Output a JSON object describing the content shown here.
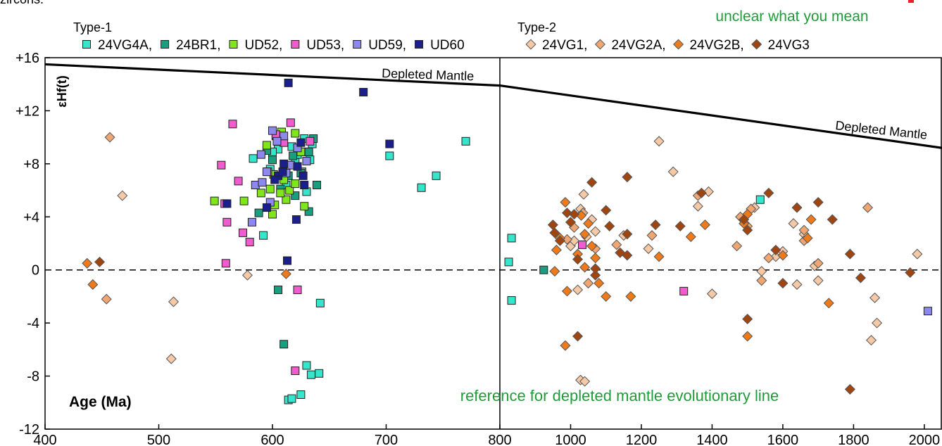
{
  "header_fragment": "zircons.",
  "comment_fragment": "unclear what you mean",
  "comment_bottom": "reference for depleted mantle evolutionary line",
  "colors": {
    "24VG4A": "#33e6cc",
    "24BR1": "#1a9e80",
    "UD52": "#7fe61a",
    "UD53": "#f05ccf",
    "UD59": "#8c88ee",
    "UD60": "#1a1f8c",
    "24VG1": "#f5c9a6",
    "24VG2A": "#f0a673",
    "24VG2B": "#ee7a1a",
    "24VG3": "#a0450f",
    "comment_green": "#1f9b3a",
    "comment_red": "#e8202a"
  },
  "chart_data": {
    "type": "scatter",
    "xlabel": "Age (Ma)",
    "ylabel": "εHf(t)",
    "xlim": [
      400,
      2050
    ],
    "ylim": [
      -12,
      16
    ],
    "x_break": 800,
    "x_ticks": [
      {
        "v": 400,
        "t": "400"
      },
      {
        "v": 500,
        "t": "500"
      },
      {
        "v": 600,
        "t": "600"
      },
      {
        "v": 700,
        "t": "700"
      },
      {
        "v": 800,
        "t": "800"
      },
      {
        "v": 1000,
        "t": "1000"
      },
      {
        "v": 1200,
        "t": "1200"
      },
      {
        "v": 1400,
        "t": "1400"
      },
      {
        "v": 1600,
        "t": "1600"
      },
      {
        "v": 1800,
        "t": "1800"
      },
      {
        "v": 2000,
        "t": "2000"
      }
    ],
    "y_ticks": [
      {
        "v": -12,
        "t": "-12"
      },
      {
        "v": -8,
        "t": "-8"
      },
      {
        "v": -4,
        "t": "-4"
      },
      {
        "v": 0,
        "t": "0"
      },
      {
        "v": 4,
        "t": "+4"
      },
      {
        "v": 8,
        "t": "+8"
      },
      {
        "v": 12,
        "t": "+12"
      },
      {
        "v": 16,
        "t": "+16"
      }
    ],
    "legend_groups": [
      {
        "title": "Type-1",
        "entries": [
          {
            "name": "24VG4A",
            "text": "24VG4A,"
          },
          {
            "name": "24BR1",
            "text": "24BR1,"
          },
          {
            "name": "UD52",
            "text": "UD52,"
          },
          {
            "name": "UD53",
            "text": "UD53,"
          },
          {
            "name": "UD59",
            "text": "UD59,"
          },
          {
            "name": "UD60",
            "text": "UD60"
          }
        ]
      },
      {
        "title": "Type-2",
        "entries": [
          {
            "name": "24VG1",
            "text": "24VG1,"
          },
          {
            "name": "24VG2A",
            "text": "24VG2A,"
          },
          {
            "name": "24VG2B",
            "text": "24VG2B,"
          },
          {
            "name": "24VG3",
            "text": "24VG3"
          }
        ]
      }
    ],
    "reference_lines": [
      {
        "label": "Depleted Mantle",
        "points": [
          [
            400,
            15.5
          ],
          [
            800,
            13.9
          ]
        ]
      },
      {
        "label": "Depleted Mantle",
        "points": [
          [
            800,
            13.9
          ],
          [
            2050,
            9.2
          ]
        ]
      }
    ],
    "zero_line": 0,
    "series": [
      {
        "name": "24VG4A",
        "marker": "square",
        "points": [
          [
            770,
            9.7
          ],
          [
            703,
            8.6
          ],
          [
            744,
            7.1
          ],
          [
            731,
            6.2
          ],
          [
            592,
            2.6
          ],
          [
            642,
            -2.5
          ],
          [
            630,
            -7.2
          ],
          [
            634,
            -7.9
          ],
          [
            641,
            -7.8
          ],
          [
            625,
            -9.4
          ],
          [
            614,
            -9.8
          ],
          [
            617,
            -9.7
          ],
          [
            583,
            8.4
          ],
          [
            628,
            9.9
          ],
          [
            605,
            9.1
          ],
          [
            635,
            9.5
          ],
          [
            620,
            8.1
          ],
          [
            598,
            7.6
          ],
          [
            612,
            6.4
          ],
          [
            630,
            5.9
          ],
          [
            825,
            0.6
          ],
          [
            833,
            2.4
          ],
          [
            833,
            -2.3
          ],
          [
            1536,
            5.3
          ],
          [
            600,
            8.9
          ],
          [
            626,
            7.4
          ],
          [
            608,
            10.0
          ],
          [
            617,
            9.3
          ],
          [
            622,
            8.7
          ],
          [
            629,
            8.9
          ],
          [
            633,
            8.3
          ]
        ]
      },
      {
        "name": "24BR1",
        "marker": "square",
        "points": [
          [
            603,
            10.1
          ],
          [
            636,
            9.9
          ],
          [
            632,
            8.9
          ],
          [
            639,
            6.4
          ],
          [
            632,
            4.4
          ],
          [
            612,
            7.8
          ],
          [
            595,
            9.0
          ],
          [
            588,
            4.3
          ],
          [
            605,
            -1.5
          ],
          [
            610,
            -5.6
          ],
          [
            600,
            8.3
          ],
          [
            614,
            7.1
          ],
          [
            620,
            5.6
          ],
          [
            607,
            6.1
          ],
          [
            924,
            0.0
          ],
          [
            618,
            8.6
          ],
          [
            625,
            7.3
          ]
        ]
      },
      {
        "name": "UD52",
        "marker": "square",
        "points": [
          [
            549,
            5.2
          ],
          [
            575,
            5.2
          ],
          [
            608,
            10.4
          ],
          [
            620,
            10.3
          ],
          [
            595,
            9.4
          ],
          [
            601,
            7.2
          ],
          [
            610,
            6.8
          ],
          [
            615,
            6.0
          ],
          [
            602,
            4.9
          ],
          [
            628,
            4.8
          ],
          [
            620,
            6.5
          ],
          [
            600,
            4.2
          ],
          [
            590,
            5.8
          ],
          [
            612,
            5.3
          ],
          [
            607,
            5.8
          ],
          [
            625,
            8.9
          ],
          [
            598,
            6.1
          ]
        ]
      },
      {
        "name": "UD53",
        "marker": "square",
        "points": [
          [
            565,
            11.0
          ],
          [
            616,
            11.1
          ],
          [
            555,
            7.9
          ],
          [
            570,
            6.7
          ],
          [
            558,
            5.0
          ],
          [
            560,
            3.6
          ],
          [
            574,
            2.8
          ],
          [
            580,
            2.1
          ],
          [
            559,
            0.5
          ],
          [
            633,
            9.7
          ],
          [
            603,
            10.2
          ],
          [
            622,
            -1.5
          ],
          [
            620,
            -7.6
          ],
          [
            1033,
            1.9
          ],
          [
            1320,
            -1.6
          ],
          [
            610,
            9.6
          ],
          [
            596,
            7.4
          ]
        ]
      },
      {
        "name": "UD59",
        "marker": "square",
        "points": [
          [
            600,
            10.5
          ],
          [
            610,
            10.1
          ],
          [
            590,
            8.7
          ],
          [
            595,
            7.4
          ],
          [
            585,
            6.4
          ],
          [
            582,
            3.6
          ],
          [
            598,
            5.1
          ],
          [
            630,
            8.2
          ],
          [
            616,
            7.9
          ],
          [
            622,
            9.2
          ],
          [
            604,
            9.7
          ],
          [
            591,
            6.6
          ],
          [
            612,
            7.3
          ],
          [
            2010,
            -3.1
          ]
        ]
      },
      {
        "name": "UD60",
        "marker": "square",
        "points": [
          [
            614,
            14.1
          ],
          [
            680,
            13.4
          ],
          [
            703,
            9.5
          ],
          [
            625,
            9.6
          ],
          [
            610,
            8.0
          ],
          [
            605,
            7.1
          ],
          [
            622,
            7.8
          ],
          [
            628,
            6.4
          ],
          [
            602,
            6.8
          ],
          [
            560,
            5.0
          ],
          [
            595,
            4.7
          ],
          [
            621,
            3.8
          ],
          [
            613,
            0.7
          ],
          [
            609,
            7.4
          ],
          [
            627,
            7.1
          ]
        ]
      },
      {
        "name": "24VG1",
        "marker": "diamond",
        "points": [
          [
            468,
            5.6
          ],
          [
            513,
            -2.4
          ],
          [
            511,
            -6.7
          ],
          [
            578,
            -0.4
          ],
          [
            1028,
            -8.3
          ],
          [
            1040,
            -8.4
          ],
          [
            1037,
            5.7
          ],
          [
            1028,
            4.6
          ],
          [
            1060,
            3.8
          ],
          [
            1045,
            2.5
          ],
          [
            1070,
            2.9
          ],
          [
            1000,
            1.8
          ],
          [
            1010,
            2.2
          ],
          [
            1020,
            -1.5
          ],
          [
            1250,
            9.7
          ],
          [
            1290,
            7.4
          ],
          [
            1390,
            5.9
          ],
          [
            1360,
            4.8
          ],
          [
            1520,
            4.7
          ],
          [
            1580,
            1.0
          ],
          [
            1600,
            1.4
          ],
          [
            1630,
            3.5
          ],
          [
            1690,
            0.3
          ],
          [
            1700,
            -0.8
          ],
          [
            1540,
            -0.1
          ],
          [
            1640,
            -1.1
          ],
          [
            1400,
            -1.8
          ],
          [
            1860,
            -2.1
          ],
          [
            1866,
            -4.0
          ],
          [
            1850,
            -5.3
          ],
          [
            1980,
            1.2
          ],
          [
            1660,
            2.7
          ],
          [
            1150,
            2.6
          ],
          [
            1220,
            1.6
          ]
        ]
      },
      {
        "name": "24VG2A",
        "marker": "diamond",
        "points": [
          [
            457,
            10.0
          ],
          [
            454,
            -2.2
          ],
          [
            1035,
            4.3
          ],
          [
            1070,
            1.6
          ],
          [
            1130,
            1.9
          ],
          [
            1230,
            2.6
          ],
          [
            1470,
            1.8
          ],
          [
            1360,
            5.6
          ],
          [
            1480,
            4.0
          ],
          [
            1500,
            3.3
          ],
          [
            1510,
            4.6
          ],
          [
            1560,
            0.9
          ],
          [
            1660,
            3.0
          ],
          [
            1540,
            -0.8
          ],
          [
            1700,
            0.5
          ],
          [
            1840,
            4.7
          ],
          [
            990,
            2.3
          ],
          [
            1010,
            3.2
          ],
          [
            1050,
            -1.0
          ],
          [
            1660,
            2.2
          ]
        ]
      },
      {
        "name": "24VG2B",
        "marker": "diamond",
        "points": [
          [
            437,
            0.5
          ],
          [
            442,
            -1.1
          ],
          [
            612,
            -0.3
          ],
          [
            960,
            1.5
          ],
          [
            970,
            2.4
          ],
          [
            985,
            5.1
          ],
          [
            1030,
            4.1
          ],
          [
            1050,
            3.5
          ],
          [
            1040,
            2.7
          ],
          [
            1060,
            1.8
          ],
          [
            1070,
            0.9
          ],
          [
            1080,
            -1.0
          ],
          [
            1100,
            -2.0
          ],
          [
            1170,
            -2.0
          ],
          [
            990,
            -1.6
          ],
          [
            985,
            -5.7
          ],
          [
            1040,
            0.2
          ],
          [
            1340,
            2.5
          ],
          [
            1380,
            3.4
          ],
          [
            1490,
            3.5
          ],
          [
            1500,
            4.2
          ],
          [
            1600,
            1.1
          ],
          [
            1670,
            2.4
          ],
          [
            1680,
            3.8
          ],
          [
            1730,
            -2.5
          ],
          [
            1500,
            -5.0
          ],
          [
            955,
            -0.1
          ],
          [
            1020,
            1.2
          ],
          [
            1250,
            1.0
          ]
        ]
      },
      {
        "name": "24VG3",
        "marker": "diamond",
        "points": [
          [
            448,
            0.6
          ],
          [
            950,
            3.4
          ],
          [
            955,
            2.8
          ],
          [
            970,
            2.2
          ],
          [
            990,
            4.3
          ],
          [
            1000,
            3.6
          ],
          [
            1010,
            4.2
          ],
          [
            1020,
            0.8
          ],
          [
            1060,
            6.6
          ],
          [
            1070,
            -0.4
          ],
          [
            1100,
            4.5
          ],
          [
            1110,
            3.3
          ],
          [
            1140,
            1.3
          ],
          [
            1160,
            1.1
          ],
          [
            1160,
            2.7
          ],
          [
            1160,
            7.0
          ],
          [
            1240,
            3.4
          ],
          [
            1310,
            3.3
          ],
          [
            1370,
            5.8
          ],
          [
            1490,
            3.8
          ],
          [
            1500,
            3.0
          ],
          [
            1500,
            -3.7
          ],
          [
            1560,
            5.8
          ],
          [
            1580,
            1.5
          ],
          [
            1600,
            -1.0
          ],
          [
            1640,
            4.7
          ],
          [
            1700,
            5.1
          ],
          [
            1740,
            3.8
          ],
          [
            1790,
            1.2
          ],
          [
            1820,
            -0.6
          ],
          [
            1790,
            -9.0
          ],
          [
            1960,
            -0.2
          ],
          [
            1020,
            -5.0
          ],
          [
            1070,
            0.1
          ]
        ]
      }
    ]
  }
}
